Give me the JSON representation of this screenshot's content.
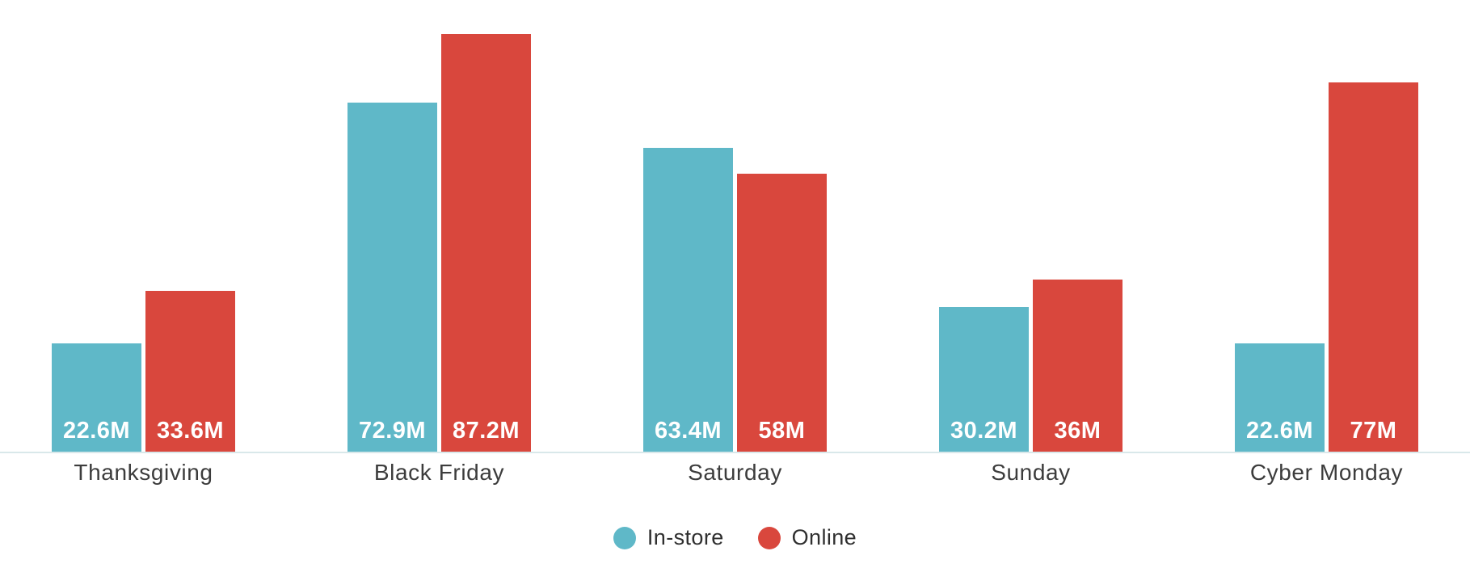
{
  "chart_data": {
    "type": "bar",
    "title": "",
    "xlabel": "",
    "ylabel": "",
    "unit": "M",
    "ylim": [
      0,
      90
    ],
    "grid": false,
    "legend_position": "bottom",
    "categories": [
      "Thanksgiving",
      "Black Friday",
      "Saturday",
      "Sunday",
      "Cyber Monday"
    ],
    "series": [
      {
        "name": "In-store",
        "color": "#5fb8c8",
        "values": [
          22.6,
          72.9,
          63.4,
          30.2,
          22.6
        ],
        "labels": [
          "22.6M",
          "72.9M",
          "63.4M",
          "30.2M",
          "22.6M"
        ]
      },
      {
        "name": "Online",
        "color": "#d9473d",
        "values": [
          33.6,
          87.2,
          58,
          36,
          77
        ],
        "labels": [
          "33.6M",
          "87.2M",
          "58M",
          "36M",
          "77M"
        ]
      }
    ]
  },
  "colors": {
    "axis_line": "#d9e8ea",
    "category_text": "#3c3c3c",
    "value_text": "#ffffff",
    "background": "#ffffff"
  }
}
